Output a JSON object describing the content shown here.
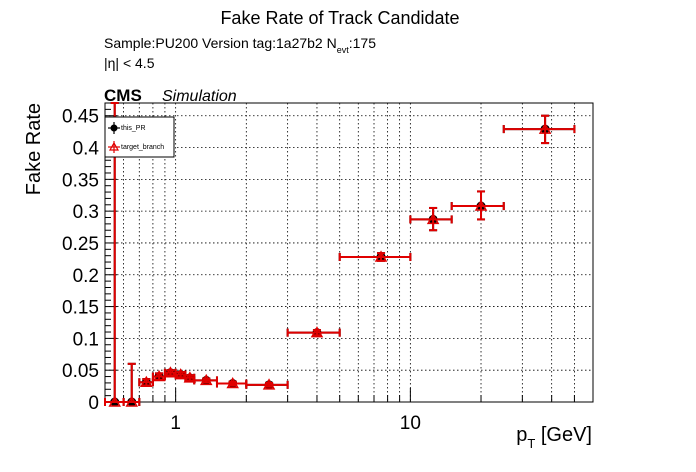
{
  "title": "Fake Rate of Track Candidate",
  "sample_line": {
    "prefix": "Sample:PU200   Version tag:1a27b2  N",
    "subscript": "evt",
    "suffix": ":175"
  },
  "eta_cut": "|η| < 4.5",
  "cms_label": "CMS",
  "sim_label": "Simulation",
  "colors": {
    "this_PR": "#000000",
    "target_branch": "#e00000",
    "grid": "#000000"
  },
  "chart_data": {
    "type": "scatter",
    "title": "Fake Rate of Track Candidate",
    "xlabel": {
      "main": "p",
      "sub": "T",
      "unit": " [GeV]"
    },
    "ylabel": "Fake Rate",
    "xscale": "log",
    "xlim": [
      0.5,
      60
    ],
    "ylim": [
      0,
      0.47
    ],
    "grid": true,
    "legend_position": "top-left",
    "x_ticks": [
      {
        "value": 1,
        "label": "1"
      },
      {
        "value": 10,
        "label": "10"
      }
    ],
    "y_ticks": [
      {
        "value": 0,
        "label": "0"
      },
      {
        "value": 0.05,
        "label": "0.05"
      },
      {
        "value": 0.1,
        "label": "0.1"
      },
      {
        "value": 0.15,
        "label": "0.15"
      },
      {
        "value": 0.2,
        "label": "0.2"
      },
      {
        "value": 0.25,
        "label": "0.25"
      },
      {
        "value": 0.3,
        "label": "0.3"
      },
      {
        "value": 0.35,
        "label": "0.35"
      },
      {
        "value": 0.4,
        "label": "0.4"
      },
      {
        "value": 0.45,
        "label": "0.45"
      }
    ],
    "series": [
      {
        "name": "this_PR",
        "marker": "circle",
        "points": [
          {
            "x": 0.55,
            "xlo": 0.5,
            "xhi": 0.6,
            "y": 0.0,
            "ylo": 0.0,
            "yhi": 0.47
          },
          {
            "x": 0.65,
            "xlo": 0.6,
            "xhi": 0.7,
            "y": 0.0,
            "ylo": 0.0,
            "yhi": 0.06
          },
          {
            "x": 0.75,
            "xlo": 0.7,
            "xhi": 0.8,
            "y": 0.031,
            "ylo": 0.026,
            "yhi": 0.036
          },
          {
            "x": 0.85,
            "xlo": 0.8,
            "xhi": 0.9,
            "y": 0.04,
            "ylo": 0.035,
            "yhi": 0.045
          },
          {
            "x": 0.95,
            "xlo": 0.9,
            "xhi": 1.0,
            "y": 0.046,
            "ylo": 0.042,
            "yhi": 0.05
          },
          {
            "x": 1.05,
            "xlo": 1.0,
            "xhi": 1.1,
            "y": 0.043,
            "ylo": 0.039,
            "yhi": 0.047
          },
          {
            "x": 1.15,
            "xlo": 1.1,
            "xhi": 1.2,
            "y": 0.038,
            "ylo": 0.034,
            "yhi": 0.042
          },
          {
            "x": 1.35,
            "xlo": 1.2,
            "xhi": 1.5,
            "y": 0.034,
            "ylo": 0.031,
            "yhi": 0.037
          },
          {
            "x": 1.75,
            "xlo": 1.5,
            "xhi": 2.0,
            "y": 0.029,
            "ylo": 0.026,
            "yhi": 0.032
          },
          {
            "x": 2.5,
            "xlo": 2.0,
            "xhi": 3.0,
            "y": 0.027,
            "ylo": 0.024,
            "yhi": 0.03
          },
          {
            "x": 4.0,
            "xlo": 3.0,
            "xhi": 5.0,
            "y": 0.109,
            "ylo": 0.105,
            "yhi": 0.113
          },
          {
            "x": 7.5,
            "xlo": 5.0,
            "xhi": 10.0,
            "y": 0.228,
            "ylo": 0.222,
            "yhi": 0.234
          },
          {
            "x": 12.5,
            "xlo": 10.0,
            "xhi": 15.0,
            "y": 0.287,
            "ylo": 0.27,
            "yhi": 0.305
          },
          {
            "x": 20.0,
            "xlo": 15.0,
            "xhi": 25.0,
            "y": 0.308,
            "ylo": 0.287,
            "yhi": 0.331
          },
          {
            "x": 37.5,
            "xlo": 25.0,
            "xhi": 50.0,
            "y": 0.429,
            "ylo": 0.407,
            "yhi": 0.45
          }
        ]
      },
      {
        "name": "target_branch",
        "marker": "triangle",
        "points": [
          {
            "x": 0.55,
            "xlo": 0.5,
            "xhi": 0.6,
            "y": 0.0,
            "ylo": 0.0,
            "yhi": 0.47
          },
          {
            "x": 0.65,
            "xlo": 0.6,
            "xhi": 0.7,
            "y": 0.0,
            "ylo": 0.0,
            "yhi": 0.06
          },
          {
            "x": 0.75,
            "xlo": 0.7,
            "xhi": 0.8,
            "y": 0.031,
            "ylo": 0.026,
            "yhi": 0.036
          },
          {
            "x": 0.85,
            "xlo": 0.8,
            "xhi": 0.9,
            "y": 0.04,
            "ylo": 0.035,
            "yhi": 0.045
          },
          {
            "x": 0.95,
            "xlo": 0.9,
            "xhi": 1.0,
            "y": 0.046,
            "ylo": 0.042,
            "yhi": 0.05
          },
          {
            "x": 1.05,
            "xlo": 1.0,
            "xhi": 1.1,
            "y": 0.043,
            "ylo": 0.039,
            "yhi": 0.047
          },
          {
            "x": 1.15,
            "xlo": 1.1,
            "xhi": 1.2,
            "y": 0.038,
            "ylo": 0.034,
            "yhi": 0.042
          },
          {
            "x": 1.35,
            "xlo": 1.2,
            "xhi": 1.5,
            "y": 0.034,
            "ylo": 0.031,
            "yhi": 0.037
          },
          {
            "x": 1.75,
            "xlo": 1.5,
            "xhi": 2.0,
            "y": 0.029,
            "ylo": 0.026,
            "yhi": 0.032
          },
          {
            "x": 2.5,
            "xlo": 2.0,
            "xhi": 3.0,
            "y": 0.027,
            "ylo": 0.024,
            "yhi": 0.03
          },
          {
            "x": 4.0,
            "xlo": 3.0,
            "xhi": 5.0,
            "y": 0.109,
            "ylo": 0.105,
            "yhi": 0.113
          },
          {
            "x": 7.5,
            "xlo": 5.0,
            "xhi": 10.0,
            "y": 0.228,
            "ylo": 0.222,
            "yhi": 0.234
          },
          {
            "x": 12.5,
            "xlo": 10.0,
            "xhi": 15.0,
            "y": 0.287,
            "ylo": 0.27,
            "yhi": 0.305
          },
          {
            "x": 20.0,
            "xlo": 15.0,
            "xhi": 25.0,
            "y": 0.308,
            "ylo": 0.287,
            "yhi": 0.331
          },
          {
            "x": 37.5,
            "xlo": 25.0,
            "xhi": 50.0,
            "y": 0.429,
            "ylo": 0.407,
            "yhi": 0.45
          }
        ]
      }
    ]
  }
}
